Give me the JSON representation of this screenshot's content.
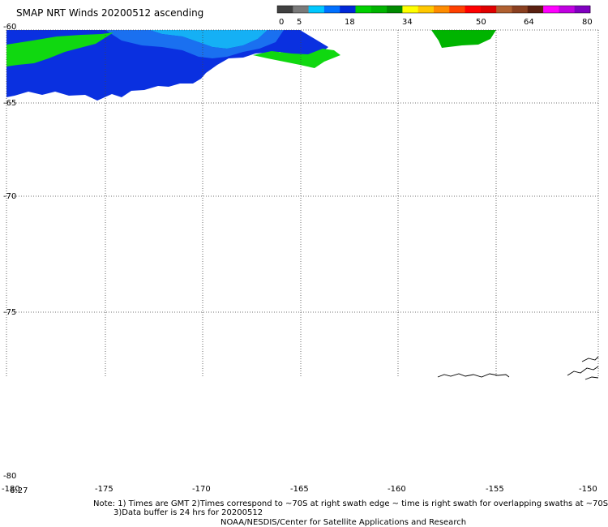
{
  "title": "SMAP NRT Winds 20200512 ascending",
  "colorbar": {
    "ticks": [
      "0",
      "5",
      "18",
      "34",
      "50",
      "64",
      "80"
    ],
    "segments": [
      {
        "color": "#404040"
      },
      {
        "color": "#7a7a7a"
      },
      {
        "color": "#00c8ff"
      },
      {
        "color": "#0070ff"
      },
      {
        "color": "#0028d8"
      },
      {
        "color": "#00d000"
      },
      {
        "color": "#00b400"
      },
      {
        "color": "#008a00"
      },
      {
        "color": "#ffff00"
      },
      {
        "color": "#ffc800"
      },
      {
        "color": "#ff8c00"
      },
      {
        "color": "#ff4000"
      },
      {
        "color": "#ff0000"
      },
      {
        "color": "#e00000"
      },
      {
        "color": "#b06030"
      },
      {
        "color": "#8a4020"
      },
      {
        "color": "#5a2010"
      },
      {
        "color": "#ff00ff"
      },
      {
        "color": "#c000e0"
      },
      {
        "color": "#8000c0"
      }
    ]
  },
  "axes": {
    "lat_labels": [
      "-60",
      "-65",
      "-70",
      "-75",
      "-80"
    ],
    "lon_labels": [
      "-180",
      "-175",
      "-170",
      "-165",
      "-160",
      "-155",
      "-150"
    ]
  },
  "time_label": "6:27",
  "notes": {
    "line1": "Note: 1) Times are GMT 2)Times correspond to ~70S at right swath edge ~ time is right swath for overlapping swaths at ~70S",
    "line2": "3)Data buffer is 24 hrs for 20200512",
    "credit": "NOAA/NESDIS/Center for Satellite Applications and Research"
  }
}
